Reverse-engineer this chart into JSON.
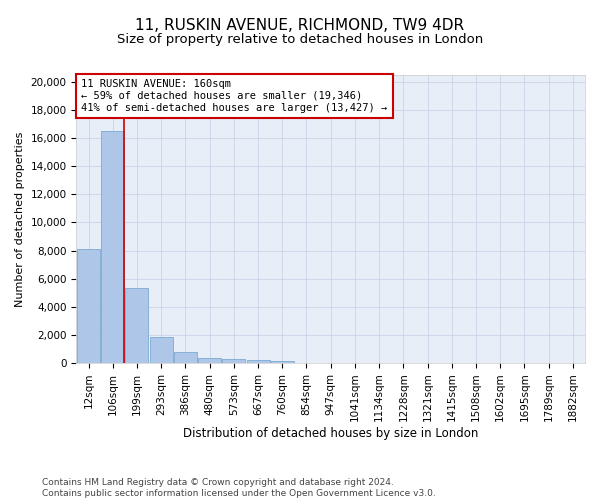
{
  "title": "11, RUSKIN AVENUE, RICHMOND, TW9 4DR",
  "subtitle": "Size of property relative to detached houses in London",
  "xlabel": "Distribution of detached houses by size in London",
  "ylabel": "Number of detached properties",
  "categories": [
    "12sqm",
    "106sqm",
    "199sqm",
    "293sqm",
    "386sqm",
    "480sqm",
    "573sqm",
    "667sqm",
    "760sqm",
    "854sqm",
    "947sqm",
    "1041sqm",
    "1134sqm",
    "1228sqm",
    "1321sqm",
    "1415sqm",
    "1508sqm",
    "1602sqm",
    "1695sqm",
    "1789sqm",
    "1882sqm"
  ],
  "values": [
    8100,
    16500,
    5350,
    1850,
    750,
    340,
    260,
    210,
    175,
    0,
    0,
    0,
    0,
    0,
    0,
    0,
    0,
    0,
    0,
    0,
    0
  ],
  "bar_color": "#aec6e8",
  "bar_edge_color": "#7aaad0",
  "property_line_color": "#cc0000",
  "property_line_x": 1.45,
  "annotation_text": "11 RUSKIN AVENUE: 160sqm\n← 59% of detached houses are smaller (19,346)\n41% of semi-detached houses are larger (13,427) →",
  "annotation_box_color": "#ffffff",
  "annotation_box_edge_color": "#cc0000",
  "ylim": [
    0,
    20500
  ],
  "yticks": [
    0,
    2000,
    4000,
    6000,
    8000,
    10000,
    12000,
    14000,
    16000,
    18000,
    20000
  ],
  "grid_color": "#c8d4e8",
  "background_color": "#e8eef8",
  "footer": "Contains HM Land Registry data © Crown copyright and database right 2024.\nContains public sector information licensed under the Open Government Licence v3.0.",
  "title_fontsize": 11,
  "subtitle_fontsize": 9.5,
  "xlabel_fontsize": 8.5,
  "ylabel_fontsize": 8,
  "tick_fontsize": 7.5,
  "footer_fontsize": 6.5
}
